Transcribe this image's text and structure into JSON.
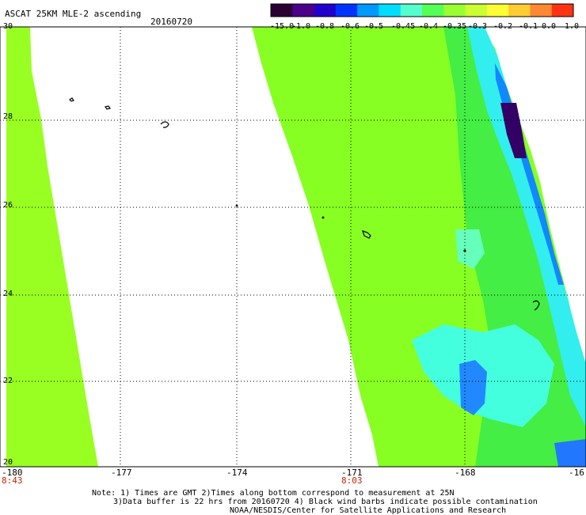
{
  "header": {
    "title": "ASCAT 25KM MLE-2 ascending",
    "date": "20160720"
  },
  "colorbar": {
    "colors": [
      "#2a0033",
      "#4a0088",
      "#2200cc",
      "#0033ff",
      "#0099ff",
      "#00ddff",
      "#55ffcc",
      "#55ff55",
      "#99ff33",
      "#ccff33",
      "#ffff33",
      "#ffcc33",
      "#ff8833",
      "#ff3311"
    ],
    "labels": [
      "-15.0",
      "-1.0",
      "-0.8",
      "-0.6",
      "-0.5",
      "-0.45",
      "-0.4",
      "-0.35",
      "-0.3",
      "-0.2",
      "-0.1",
      "0.0",
      "1.0"
    ]
  },
  "axes": {
    "y_labels": [
      "30",
      "28",
      "26",
      "24",
      "22",
      "20"
    ],
    "x_labels": [
      "-180",
      "-177",
      "-174",
      "-171",
      "-168",
      "-16"
    ]
  },
  "time_labels": [
    "8:43",
    "8:03"
  ],
  "notes": [
    "Note: 1) Times are GMT 2)Times along bottom correspond to measurement at 25N",
    "3)Data buffer is 22 hrs from 20160720 4) Black wind barbs indicate possible contamination",
    "NOAA/NESDIS/Center for Satellite Applications and Research"
  ]
}
